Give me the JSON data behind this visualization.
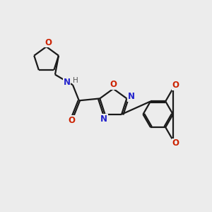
{
  "bg_color": "#ececec",
  "bond_color": "#1a1a1a",
  "nitrogen_color": "#2222cc",
  "oxygen_color": "#cc2200",
  "line_width": 1.6,
  "dbo": 0.08,
  "font_size": 8.5,
  "fig_size": [
    3.0,
    3.0
  ],
  "dpi": 100,
  "xlim": [
    0,
    10
  ],
  "ylim": [
    0,
    10
  ]
}
